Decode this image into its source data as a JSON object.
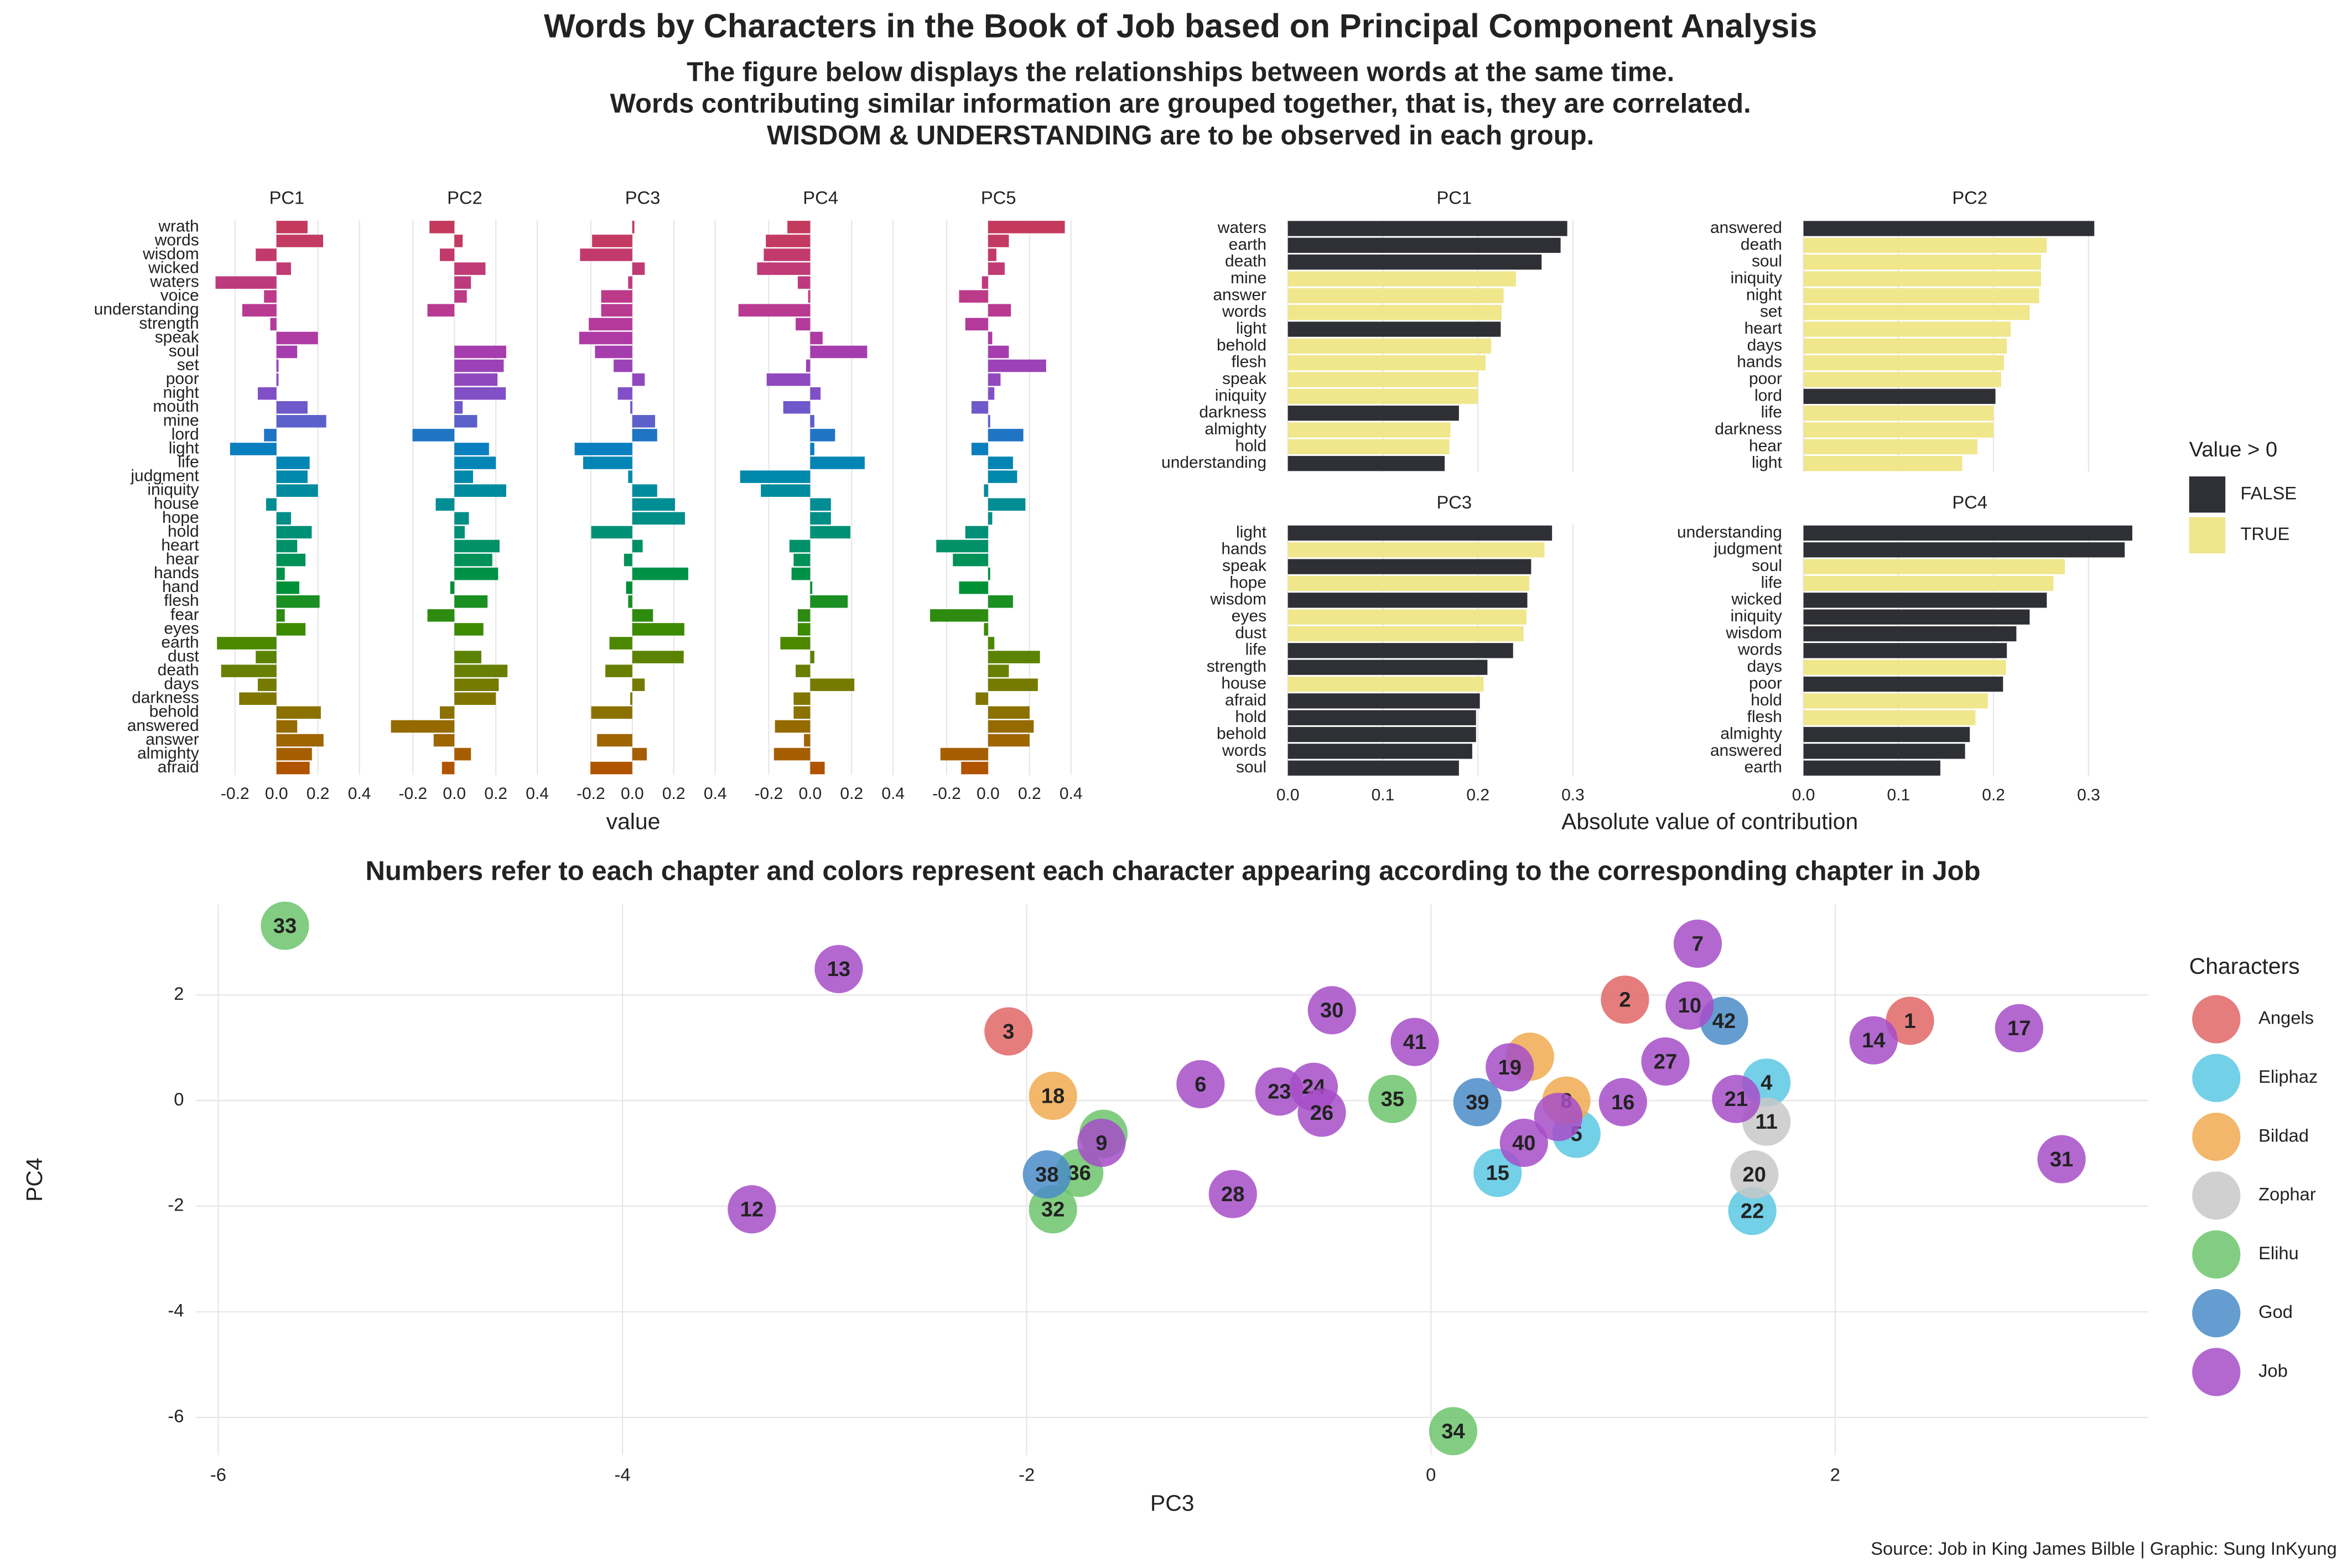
{
  "title": "Words by Characters in the Book of Job based on Principal Component Analysis",
  "subtitle_lines": [
    "The figure below displays the relationships between words at the same time.",
    "Words contributing similar information are grouped together, that is, they are correlated.",
    "WISDOM & UNDERSTANDING are to be observed in each group."
  ],
  "caption": "Source: Job in King James Bilble | Graphic: Sung InKyung",
  "chart_data": [
    {
      "type": "bar",
      "orientation": "horizontal",
      "xlabel": "value",
      "categories": [
        "wrath",
        "words",
        "wisdom",
        "wicked",
        "waters",
        "voice",
        "understanding",
        "strength",
        "speak",
        "soul",
        "set",
        "poor",
        "night",
        "mouth",
        "mine",
        "lord",
        "light",
        "life",
        "judgment",
        "iniquity",
        "house",
        "hope",
        "hold",
        "heart",
        "hear",
        "hands",
        "hand",
        "flesh",
        "fear",
        "eyes",
        "earth",
        "dust",
        "death",
        "days",
        "darkness",
        "behold",
        "answered",
        "answer",
        "almighty",
        "afraid"
      ],
      "colors": [
        "#c33a5d",
        "#c33a63",
        "#c23a6c",
        "#c03a75",
        "#be3a7e",
        "#bc3a88",
        "#b93a91",
        "#b43a9a",
        "#ae3aa4",
        "#a63dae",
        "#9c42b7",
        "#9048bf",
        "#8150c6",
        "#6f58c9",
        "#5c60ca",
        "#1f74c4",
        "#0a7fbf",
        "#0085b5",
        "#0088ab",
        "#008b9f",
        "#008d93",
        "#008e86",
        "#009077",
        "#009168",
        "#009159",
        "#009148",
        "#009036",
        "#1a8f22",
        "#2d8c10",
        "#3c8a00",
        "#4c8700",
        "#5c8300",
        "#697f00",
        "#757b00",
        "#807600",
        "#8b7100",
        "#956b00",
        "#9e6500",
        "#a65f00",
        "#b05400"
      ],
      "facets": [
        {
          "title": "PC1",
          "values": [
            0.15,
            0.225,
            -0.1,
            0.07,
            -0.294,
            -0.06,
            -0.165,
            -0.03,
            0.2,
            0.1,
            0.01,
            0.01,
            -0.09,
            0.15,
            0.24,
            -0.06,
            -0.224,
            0.16,
            0.15,
            0.2,
            -0.05,
            0.07,
            0.17,
            0.1,
            0.14,
            0.04,
            0.11,
            0.208,
            0.04,
            0.14,
            -0.287,
            -0.1,
            -0.267,
            -0.09,
            -0.18,
            0.214,
            0.1,
            0.227,
            0.171,
            0.16
          ]
        },
        {
          "title": "PC2",
          "values": [
            -0.12,
            0.04,
            -0.07,
            0.15,
            0.08,
            0.06,
            -0.13,
            0,
            0,
            0.25,
            0.238,
            0.208,
            0.248,
            0.04,
            0.11,
            -0.202,
            0.167,
            0.2,
            0.09,
            0.25,
            -0.09,
            0.07,
            0.05,
            0.218,
            0.183,
            0.211,
            -0.02,
            0.16,
            -0.13,
            0.14,
            0,
            0.13,
            0.256,
            0.214,
            0.2,
            -0.07,
            -0.306,
            -0.1,
            0.08,
            -0.06
          ]
        },
        {
          "title": "PC3",
          "values": [
            0.01,
            -0.194,
            -0.252,
            0.06,
            -0.02,
            -0.15,
            -0.15,
            -0.21,
            -0.256,
            -0.18,
            -0.09,
            0.06,
            -0.07,
            -0.01,
            0.11,
            0.12,
            -0.278,
            -0.237,
            -0.02,
            0.12,
            0.206,
            0.254,
            -0.198,
            0.05,
            -0.04,
            0.27,
            -0.03,
            -0.02,
            0.1,
            0.251,
            -0.11,
            0.248,
            -0.13,
            0.06,
            -0.01,
            -0.198,
            0,
            -0.17,
            0.07,
            -0.202
          ]
        },
        {
          "title": "PC4",
          "values": [
            -0.11,
            -0.214,
            -0.224,
            -0.256,
            -0.06,
            -0.01,
            -0.346,
            -0.07,
            0.06,
            0.275,
            -0.02,
            -0.21,
            0.05,
            -0.13,
            0.02,
            0.12,
            0.02,
            0.263,
            -0.338,
            -0.238,
            0.1,
            0.1,
            0.194,
            -0.1,
            -0.08,
            -0.09,
            0.01,
            0.181,
            -0.06,
            -0.06,
            -0.144,
            0.02,
            -0.07,
            0.213,
            -0.08,
            -0.08,
            -0.17,
            -0.03,
            -0.175,
            0.07
          ]
        },
        {
          "title": "PC5",
          "values": [
            0.37,
            0.1,
            0.04,
            0.08,
            -0.03,
            -0.14,
            0.11,
            -0.11,
            0.02,
            0.1,
            0.28,
            0.06,
            0.03,
            -0.08,
            0.01,
            0.17,
            -0.08,
            0.12,
            0.14,
            -0.02,
            0.18,
            0.02,
            -0.11,
            -0.25,
            -0.17,
            0.01,
            -0.14,
            0.12,
            -0.28,
            -0.02,
            0.03,
            0.25,
            0.1,
            0.24,
            -0.06,
            0.2,
            0.22,
            0.2,
            -0.23,
            -0.13
          ]
        }
      ],
      "xlim": [
        -0.33,
        0.43
      ],
      "xticks": [
        -0.2,
        {
          "value": 0,
          "label": "0.0"
        },
        0.2,
        0.4
      ],
      "grid": true
    },
    {
      "type": "bar",
      "orientation": "horizontal",
      "xlabel": "Absolute value of contribution",
      "legend_title": "Value > 0",
      "legend": [
        {
          "label": "FALSE",
          "color": "#2f3035"
        },
        {
          "label": "TRUE",
          "color": "#f0e68c"
        }
      ],
      "facets": [
        {
          "title": "PC1",
          "categories": [
            "waters",
            "earth",
            "death",
            "mine",
            "answer",
            "words",
            "light",
            "behold",
            "flesh",
            "speak",
            "iniquity",
            "darkness",
            "almighty",
            "hold",
            "understanding"
          ],
          "values": [
            0.294,
            0.287,
            0.267,
            0.24,
            0.227,
            0.225,
            0.224,
            0.214,
            0.208,
            0.2,
            0.2,
            0.18,
            0.171,
            0.17,
            0.165
          ],
          "sign": [
            "FALSE",
            "FALSE",
            "FALSE",
            "TRUE",
            "TRUE",
            "TRUE",
            "FALSE",
            "TRUE",
            "TRUE",
            "TRUE",
            "TRUE",
            "FALSE",
            "TRUE",
            "TRUE",
            "FALSE"
          ]
        },
        {
          "title": "PC2",
          "categories": [
            "answered",
            "death",
            "soul",
            "iniquity",
            "night",
            "set",
            "heart",
            "days",
            "hands",
            "poor",
            "lord",
            "life",
            "darkness",
            "hear",
            "light"
          ],
          "values": [
            0.306,
            0.256,
            0.25,
            0.25,
            0.248,
            0.238,
            0.218,
            0.214,
            0.211,
            0.208,
            0.202,
            0.2,
            0.2,
            0.183,
            0.167
          ],
          "sign": [
            "FALSE",
            "TRUE",
            "TRUE",
            "TRUE",
            "TRUE",
            "TRUE",
            "TRUE",
            "TRUE",
            "TRUE",
            "TRUE",
            "FALSE",
            "TRUE",
            "TRUE",
            "TRUE",
            "TRUE"
          ]
        },
        {
          "title": "PC3",
          "categories": [
            "light",
            "hands",
            "speak",
            "hope",
            "wisdom",
            "eyes",
            "dust",
            "life",
            "strength",
            "house",
            "afraid",
            "hold",
            "behold",
            "words",
            "soul"
          ],
          "values": [
            0.278,
            0.27,
            0.256,
            0.254,
            0.252,
            0.251,
            0.248,
            0.237,
            0.21,
            0.206,
            0.202,
            0.198,
            0.198,
            0.194,
            0.18
          ],
          "sign": [
            "FALSE",
            "TRUE",
            "FALSE",
            "TRUE",
            "FALSE",
            "TRUE",
            "TRUE",
            "FALSE",
            "FALSE",
            "TRUE",
            "FALSE",
            "FALSE",
            "FALSE",
            "FALSE",
            "FALSE"
          ]
        },
        {
          "title": "PC4",
          "categories": [
            "understanding",
            "judgment",
            "soul",
            "life",
            "wicked",
            "iniquity",
            "wisdom",
            "words",
            "days",
            "poor",
            "hold",
            "flesh",
            "almighty",
            "answered",
            "earth"
          ],
          "values": [
            0.346,
            0.338,
            0.275,
            0.263,
            0.256,
            0.238,
            0.224,
            0.214,
            0.213,
            0.21,
            0.194,
            0.181,
            0.175,
            0.17,
            0.144
          ],
          "sign": [
            "FALSE",
            "FALSE",
            "TRUE",
            "TRUE",
            "FALSE",
            "FALSE",
            "FALSE",
            "FALSE",
            "TRUE",
            "FALSE",
            "TRUE",
            "TRUE",
            "FALSE",
            "FALSE",
            "FALSE"
          ]
        }
      ],
      "xlim": [
        -0.013,
        0.363
      ],
      "xticks": [
        {
          "value": 0,
          "label": "0.0"
        },
        0.1,
        0.2,
        0.3
      ],
      "grid": true
    },
    {
      "type": "scatter",
      "title": "Numbers refer to each chapter and colors represent each character appearing according to the corresponding chapter in Job",
      "xlabel": "PC3",
      "ylabel": "PC4",
      "legend_title": "Characters",
      "xlim": [
        -6.11,
        3.55
      ],
      "ylim": [
        -6.71,
        3.71
      ],
      "xticks": [
        -6,
        -4,
        -2,
        0,
        2
      ],
      "yticks": [
        -6,
        -4,
        -2,
        0,
        2
      ],
      "grid": true,
      "series": [
        {
          "name": "Angels",
          "color": "#e06666",
          "chapters": [
            1,
            2,
            3
          ],
          "x": [
            2.37,
            0.96,
            -2.09
          ],
          "y": [
            1.51,
            1.91,
            1.31
          ]
        },
        {
          "name": "Eliphaz",
          "color": "#5bc8e3",
          "chapters": [
            4,
            5,
            15,
            22
          ],
          "x": [
            1.66,
            0.72,
            0.33,
            1.59
          ],
          "y": [
            0.34,
            -0.63,
            -1.37,
            -2.09
          ]
        },
        {
          "name": "Bildad",
          "color": "#f0aa50",
          "chapters": [
            8,
            18,
            null
          ],
          "x": [
            0.67,
            -1.87,
            0.49
          ],
          "y": [
            0,
            0.09,
            0.83
          ]
        },
        {
          "name": "Zophar",
          "color": "#c8c8c8",
          "chapters": [
            11,
            20
          ],
          "x": [
            1.66,
            1.6
          ],
          "y": [
            -0.4,
            -1.4
          ]
        },
        {
          "name": "Elihu",
          "color": "#6cc46c",
          "chapters": [
            33,
            35,
            null,
            36,
            32,
            34
          ],
          "x": [
            -5.67,
            -0.19,
            -1.62,
            -1.74,
            -1.87,
            0.11
          ],
          "y": [
            3.31,
            0.03,
            -0.63,
            -1.37,
            -2.06,
            -6.26
          ]
        },
        {
          "name": "God",
          "color": "#4a8cc8",
          "chapters": [
            42,
            39,
            38
          ],
          "x": [
            1.45,
            0.23,
            -1.9
          ],
          "y": [
            1.51,
            -0.03,
            -1.4
          ]
        },
        {
          "name": "Job",
          "color": "#a64ec8",
          "chapters": [
            13,
            30,
            7,
            10,
            14,
            17,
            41,
            19,
            6,
            23,
            24,
            26,
            16,
            27,
            21,
            null,
            40,
            31,
            9,
            28,
            12
          ],
          "x": [
            -2.93,
            -0.49,
            1.32,
            1.28,
            2.19,
            2.91,
            -0.08,
            0.39,
            -1.14,
            -0.75,
            -0.58,
            -0.54,
            0.95,
            1.16,
            1.51,
            0.63,
            0.46,
            3.12,
            -1.63,
            -0.98,
            -3.36
          ],
          "y": [
            2.49,
            1.71,
            2.97,
            1.8,
            1.14,
            1.37,
            1.11,
            0.63,
            0.31,
            0.17,
            0.26,
            -0.23,
            -0.03,
            0.74,
            0.03,
            -0.31,
            -0.8,
            -1.11,
            -0.8,
            -1.77,
            -2.06
          ]
        }
      ]
    }
  ]
}
